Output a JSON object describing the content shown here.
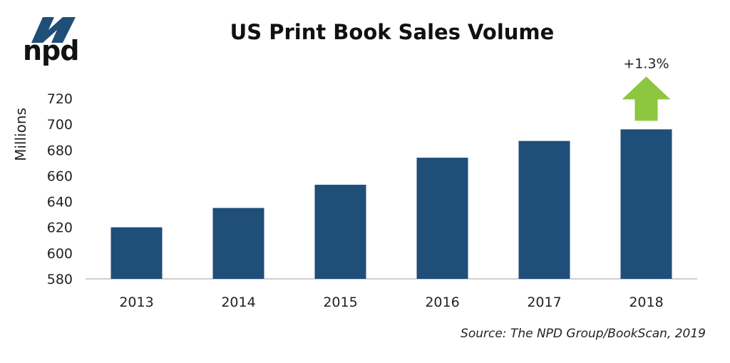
{
  "brand": {
    "logo_text": "npd",
    "logo_color": "#1f4e79"
  },
  "chart_data": {
    "type": "bar",
    "title": "US Print Book Sales Volume",
    "xlabel": "",
    "ylabel": "Millions",
    "categories": [
      "2013",
      "2014",
      "2015",
      "2016",
      "2017",
      "2018"
    ],
    "values": [
      620,
      635,
      653,
      674,
      687,
      696
    ],
    "ylim": [
      580,
      720
    ],
    "yticks": [
      580,
      600,
      620,
      640,
      660,
      680,
      700,
      720
    ],
    "grid": false,
    "bar_color": "#1f4e79",
    "annotation": {
      "text": "+1.3%",
      "category": "2018",
      "marker": "up-arrow",
      "color": "#8dc63f"
    },
    "source": "Source: The NPD Group/BookScan,  2019"
  }
}
